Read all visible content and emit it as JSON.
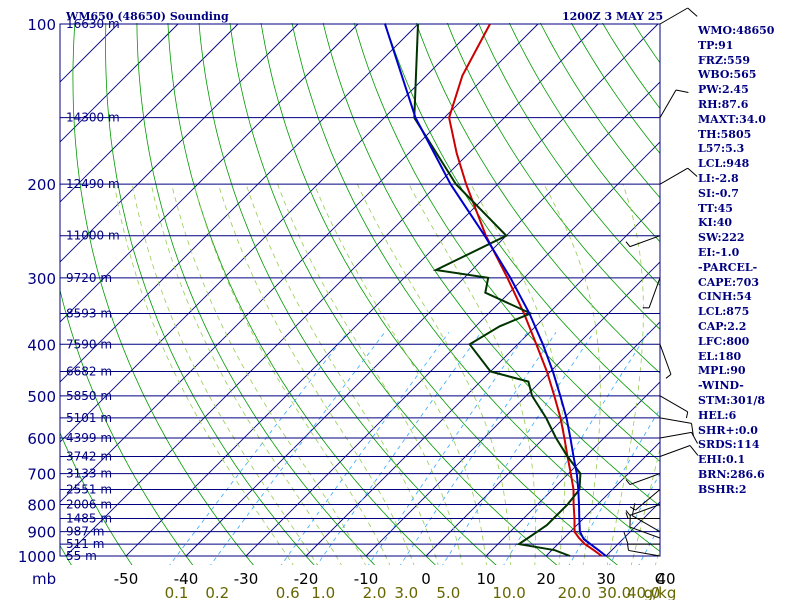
{
  "header": {
    "station": "WM650 (48650) Sounding",
    "time": "1200Z  3 MAY 25"
  },
  "indices": [
    "WMO:48650",
    "TP:91",
    "FRZ:559",
    "WBO:565",
    "PW:2.45",
    "RH:87.6",
    "MAXT:34.0",
    "TH:5805",
    "L57:5.3",
    "LCL:948",
    "LI:-2.8",
    "SI:-0.7",
    "TT:45",
    "KI:40",
    "SW:222",
    "EI:-1.0",
    "-PARCEL-",
    "CAPE:703",
    "CINH:54",
    "LCL:875",
    "CAP:2.2",
    "LFC:800",
    "EL:180",
    "MPL:90",
    "-WIND-",
    "STM:301/8",
    "HEL:6",
    "SHR+:0.0",
    "SRDS:114",
    "EHI:0.1",
    "BRN:286.6",
    "BSHR:2"
  ],
  "colors": {
    "isobar": "#000080",
    "isotherm": "#000080",
    "dry_adiabat": "#009900",
    "moist_adiabat": "#99cc55",
    "mixing_ratio": "#33aaff",
    "temperature": "#cc0000",
    "dewpoint": "#003300",
    "parcel": "#0000cc",
    "wind_barb": "#000000",
    "tick_label_temp": "#000000",
    "tick_label_mixing": "#666600"
  },
  "chart_data": {
    "type": "skew-t",
    "y_axis": "pressure (log)",
    "yunit": "mb",
    "xunit_mixing": "g/kg",
    "ylim": [
      1000,
      100
    ],
    "xlim": [
      -50,
      50
    ],
    "pressure_levels": [
      {
        "p": 100,
        "height": "16630 m"
      },
      {
        "p": 150,
        "height": "14300 m"
      },
      {
        "p": 200,
        "height": "12490 m"
      },
      {
        "p": 250,
        "height": "11000 m"
      },
      {
        "p": 300,
        "height": "9720 m"
      },
      {
        "p": 350,
        "height": "8593 m"
      },
      {
        "p": 400,
        "height": "7590 m"
      },
      {
        "p": 450,
        "height": "6682 m"
      },
      {
        "p": 500,
        "height": "5850 m"
      },
      {
        "p": 550,
        "height": "5101 m"
      },
      {
        "p": 600,
        "height": "4399 m"
      },
      {
        "p": 650,
        "height": "3742 m"
      },
      {
        "p": 700,
        "height": "3133 m"
      },
      {
        "p": 750,
        "height": "2551 m"
      },
      {
        "p": 800,
        "height": "2006 m"
      },
      {
        "p": 850,
        "height": "1485 m"
      },
      {
        "p": 900,
        "height": "987 m"
      },
      {
        "p": 950,
        "height": "511 m"
      },
      {
        "p": 1000,
        "height": "55 m"
      }
    ],
    "pressure_tick_labels": [
      "100",
      "200",
      "300",
      "400",
      "500",
      "600",
      "700",
      "800",
      "900",
      "1000"
    ],
    "temperature_ticks": [
      "-50",
      "-40",
      "-30",
      "-20",
      "-10",
      "0",
      "10",
      "20",
      "30",
      "40",
      "C"
    ],
    "temperature_tick_values": [
      -50,
      -40,
      -30,
      -20,
      -10,
      0,
      10,
      20,
      30,
      40
    ],
    "mixing_ratio_ticks": [
      "0.1",
      "0.2",
      "0.6",
      "1.0",
      "2.0",
      "3.0",
      "5.0",
      "10.0",
      "20.0",
      "30.0",
      "40.0",
      "g/kg"
    ],
    "mixing_ratio_values": [
      0.1,
      0.2,
      0.6,
      1.0,
      2.0,
      3.0,
      5.0,
      10.0,
      20.0,
      30.0,
      40.0
    ],
    "y_axis_label": "mb",
    "series": [
      {
        "key": "temperature",
        "p": [
          1000,
          975,
          950,
          925,
          900,
          850,
          800,
          750,
          700,
          650,
          600,
          550,
          500,
          450,
          400,
          350,
          300,
          250,
          200,
          175,
          150,
          125,
          100
        ],
        "t": [
          29.3,
          27.0,
          24.5,
          22.5,
          20.7,
          18.5,
          16.0,
          13.5,
          10.4,
          7.0,
          3.4,
          -0.6,
          -5.3,
          -10.6,
          -16.9,
          -24.1,
          -32.8,
          -43.4,
          -55.3,
          -62,
          -69.2,
          -74,
          -78
        ]
      },
      {
        "key": "dewpoint",
        "p": [
          1000,
          975,
          950,
          925,
          900,
          875,
          850,
          800,
          750,
          700,
          650,
          600,
          550,
          500,
          470,
          450,
          400,
          370,
          350,
          320,
          300,
          290,
          250,
          200,
          150,
          100
        ],
        "t": [
          24.0,
          20.5,
          13.5,
          14.0,
          14.5,
          15.0,
          15.0,
          15.0,
          14.5,
          12.0,
          7.0,
          2.0,
          -3.0,
          -9.0,
          -12.0,
          -20.0,
          -28.0,
          -26.0,
          -23.0,
          -34.0,
          -36.0,
          -46.0,
          -40.0,
          -57.0,
          -75.0,
          -90.0
        ]
      },
      {
        "key": "parcel",
        "p": [
          1000,
          975,
          950,
          930,
          900,
          850,
          800,
          750,
          700,
          650,
          600,
          550,
          500,
          450,
          400,
          350,
          300,
          250,
          200,
          150,
          100
        ],
        "t": [
          30.0,
          27.8,
          25.4,
          23.5,
          21.6,
          19.3,
          16.9,
          14.3,
          11.4,
          8.0,
          4.4,
          0.4,
          -4.3,
          -9.6,
          -15.8,
          -23.2,
          -32.3,
          -43.6,
          -57.9,
          -74.8,
          -95.5
        ]
      }
    ],
    "wind_barbs": [
      {
        "p": 1000,
        "dir": 280,
        "spd": 5
      },
      {
        "p": 950,
        "dir": 270,
        "spd": 10
      },
      {
        "p": 925,
        "dir": 290,
        "spd": 10
      },
      {
        "p": 900,
        "dir": 300,
        "spd": 10
      },
      {
        "p": 850,
        "dir": 270,
        "spd": 5
      },
      {
        "p": 800,
        "dir": 250,
        "spd": 5
      },
      {
        "p": 750,
        "dir": 230,
        "spd": 5
      },
      {
        "p": 700,
        "dir": 250,
        "spd": 5
      },
      {
        "p": 650,
        "dir": 70,
        "spd": 10
      },
      {
        "p": 600,
        "dir": 80,
        "spd": 10
      },
      {
        "p": 550,
        "dir": 100,
        "spd": 10
      },
      {
        "p": 500,
        "dir": 120,
        "spd": 5
      },
      {
        "p": 400,
        "dir": 160,
        "spd": 5
      },
      {
        "p": 300,
        "dir": 200,
        "spd": 5
      },
      {
        "p": 250,
        "dir": 250,
        "spd": 5
      },
      {
        "p": 200,
        "dir": 60,
        "spd": 10
      },
      {
        "p": 150,
        "dir": 30,
        "spd": 10
      },
      {
        "p": 100,
        "dir": 60,
        "spd": 10
      }
    ]
  }
}
